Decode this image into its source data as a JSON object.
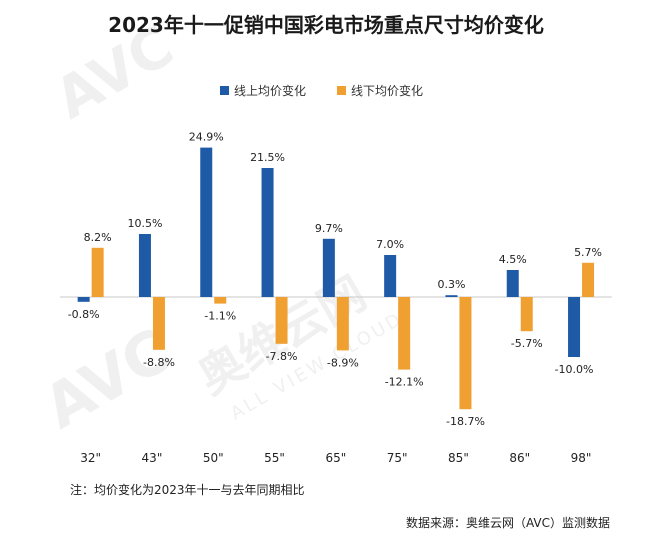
{
  "chart_data": {
    "type": "bar",
    "title": "2023年十一促销中国彩电市场重点尺寸均价变化",
    "categories": [
      "32\"",
      "43\"",
      "50\"",
      "55\"",
      "65\"",
      "75\"",
      "85\"",
      "86\"",
      "98\""
    ],
    "series": [
      {
        "name": "线上均价变化",
        "color": "#1f5aa6",
        "values": [
          -0.8,
          10.5,
          24.9,
          21.5,
          9.7,
          7.0,
          0.3,
          4.5,
          -10.0
        ]
      },
      {
        "name": "线下均价变化",
        "color": "#f0a030",
        "values": [
          8.2,
          -8.8,
          -1.1,
          -7.8,
          -8.9,
          -12.1,
          -18.7,
          -5.7,
          5.7
        ]
      }
    ],
    "data_labels": [
      [
        "-0.8%",
        "10.5%",
        "24.9%",
        "21.5%",
        "9.7%",
        "7.0%",
        "0.3%",
        "4.5%",
        "-10.0%"
      ],
      [
        "8.2%",
        "-8.8%",
        "-1.1%",
        "-7.8%",
        "-8.9%",
        "-12.1%",
        "-18.7%",
        "-5.7%",
        "5.7%"
      ]
    ],
    "ylim": [
      -25,
      25
    ],
    "legend_position": "top-left",
    "grid": false,
    "note": "注：均价变化为2023年十一与去年同期相比",
    "source": "数据来源：奥维云网（AVC）监测数据"
  },
  "watermark": {
    "brand": "AVC",
    "cn": "奥维云网",
    "en": "ALL VIEW CLOUD"
  }
}
